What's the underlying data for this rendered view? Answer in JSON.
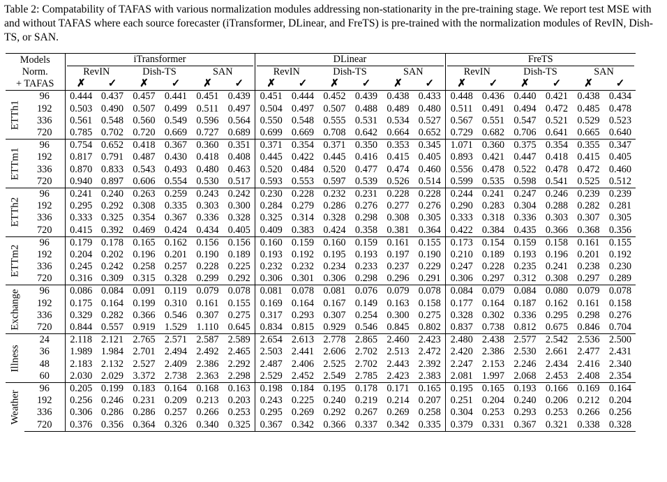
{
  "caption": "Table 2: Compatability of TAFAS with various normalization modules addressing non-stationarity in the pre-training stage. We report test MSE with and without TAFAS where each source forecaster (iTransformer, DLinear, and FreTS) is pre-trained with the normalization modules of RevIN, Dish-TS, or SAN.",
  "header": {
    "models_label": "Models",
    "norm_label": "Norm.",
    "tafas_label": "+ TAFAS",
    "models": [
      "iTransformer",
      "DLinear",
      "FreTS"
    ],
    "norms": [
      "RevIN",
      "Dish-TS",
      "SAN"
    ],
    "without_mark": "✗",
    "with_mark": "✓"
  },
  "groups": [
    {
      "dataset": "ETTh1",
      "rows": [
        {
          "h": "96",
          "v": [
            "0.444",
            "0.437",
            "0.457",
            "0.441",
            "0.451",
            "0.439",
            "0.451",
            "0.444",
            "0.452",
            "0.439",
            "0.438",
            "0.433",
            "0.448",
            "0.436",
            "0.440",
            "0.421",
            "0.438",
            "0.434"
          ],
          "bold": [
            1,
            3,
            5,
            7,
            9,
            11,
            13,
            15,
            17
          ]
        },
        {
          "h": "192",
          "v": [
            "0.503",
            "0.490",
            "0.507",
            "0.499",
            "0.511",
            "0.497",
            "0.504",
            "0.497",
            "0.507",
            "0.488",
            "0.489",
            "0.480",
            "0.511",
            "0.491",
            "0.494",
            "0.472",
            "0.485",
            "0.478"
          ],
          "bold": [
            1,
            3,
            5,
            7,
            9,
            11,
            13,
            15,
            17
          ]
        },
        {
          "h": "336",
          "v": [
            "0.561",
            "0.548",
            "0.560",
            "0.549",
            "0.596",
            "0.564",
            "0.550",
            "0.548",
            "0.555",
            "0.531",
            "0.534",
            "0.527",
            "0.567",
            "0.551",
            "0.547",
            "0.521",
            "0.529",
            "0.523"
          ],
          "bold": [
            1,
            3,
            5,
            7,
            9,
            11,
            13,
            15,
            17
          ]
        },
        {
          "h": "720",
          "v": [
            "0.785",
            "0.702",
            "0.720",
            "0.669",
            "0.727",
            "0.689",
            "0.699",
            "0.669",
            "0.708",
            "0.642",
            "0.664",
            "0.652",
            "0.729",
            "0.682",
            "0.706",
            "0.641",
            "0.665",
            "0.640"
          ],
          "bold": [
            1,
            3,
            5,
            7,
            9,
            11,
            13,
            15,
            17
          ]
        }
      ]
    },
    {
      "dataset": "ETTm1",
      "rows": [
        {
          "h": "96",
          "v": [
            "0.754",
            "0.652",
            "0.418",
            "0.367",
            "0.360",
            "0.351",
            "0.371",
            "0.354",
            "0.371",
            "0.350",
            "0.353",
            "0.345",
            "1.071",
            "0.360",
            "0.375",
            "0.354",
            "0.355",
            "0.347"
          ],
          "bold": [
            1,
            3,
            5,
            7,
            9,
            11,
            13,
            15,
            17
          ]
        },
        {
          "h": "192",
          "v": [
            "0.817",
            "0.791",
            "0.487",
            "0.430",
            "0.418",
            "0.408",
            "0.445",
            "0.422",
            "0.445",
            "0.416",
            "0.415",
            "0.405",
            "0.893",
            "0.421",
            "0.447",
            "0.418",
            "0.415",
            "0.405"
          ],
          "bold": [
            1,
            3,
            5,
            7,
            9,
            11,
            13,
            15,
            17
          ]
        },
        {
          "h": "336",
          "v": [
            "0.870",
            "0.833",
            "0.543",
            "0.493",
            "0.480",
            "0.463",
            "0.520",
            "0.484",
            "0.520",
            "0.477",
            "0.474",
            "0.460",
            "0.556",
            "0.478",
            "0.522",
            "0.478",
            "0.472",
            "0.460"
          ],
          "bold": [
            1,
            3,
            5,
            7,
            9,
            11,
            13,
            15,
            17
          ]
        },
        {
          "h": "720",
          "v": [
            "0.940",
            "0.897",
            "0.606",
            "0.554",
            "0.530",
            "0.517",
            "0.593",
            "0.553",
            "0.597",
            "0.539",
            "0.526",
            "0.514",
            "0.599",
            "0.535",
            "0.598",
            "0.541",
            "0.525",
            "0.512"
          ],
          "bold": [
            1,
            3,
            5,
            7,
            9,
            11,
            13,
            15,
            17
          ]
        }
      ]
    },
    {
      "dataset": "ETTh2",
      "rows": [
        {
          "h": "96",
          "v": [
            "0.241",
            "0.240",
            "0.263",
            "0.259",
            "0.243",
            "0.242",
            "0.230",
            "0.228",
            "0.232",
            "0.231",
            "0.228",
            "0.228",
            "0.244",
            "0.241",
            "0.247",
            "0.246",
            "0.239",
            "0.239"
          ],
          "bold": [
            1,
            3,
            5,
            7,
            9,
            10,
            11,
            13,
            15,
            16,
            17
          ]
        },
        {
          "h": "192",
          "v": [
            "0.295",
            "0.292",
            "0.308",
            "0.335",
            "0.303",
            "0.300",
            "0.284",
            "0.279",
            "0.286",
            "0.276",
            "0.277",
            "0.276",
            "0.290",
            "0.283",
            "0.304",
            "0.288",
            "0.282",
            "0.281"
          ],
          "bold": [
            1,
            2,
            5,
            7,
            9,
            11,
            13,
            15,
            17
          ]
        },
        {
          "h": "336",
          "v": [
            "0.333",
            "0.325",
            "0.354",
            "0.367",
            "0.336",
            "0.328",
            "0.325",
            "0.314",
            "0.328",
            "0.298",
            "0.308",
            "0.305",
            "0.333",
            "0.318",
            "0.336",
            "0.303",
            "0.307",
            "0.305"
          ],
          "bold": [
            1,
            2,
            5,
            7,
            9,
            11,
            13,
            15,
            17
          ]
        },
        {
          "h": "720",
          "v": [
            "0.415",
            "0.392",
            "0.469",
            "0.424",
            "0.434",
            "0.405",
            "0.409",
            "0.383",
            "0.424",
            "0.358",
            "0.381",
            "0.364",
            "0.422",
            "0.384",
            "0.435",
            "0.366",
            "0.368",
            "0.356"
          ],
          "bold": [
            1,
            3,
            5,
            7,
            9,
            11,
            13,
            15,
            17
          ]
        }
      ]
    },
    {
      "dataset": "ETTm2",
      "rows": [
        {
          "h": "96",
          "v": [
            "0.179",
            "0.178",
            "0.165",
            "0.162",
            "0.156",
            "0.156",
            "0.160",
            "0.159",
            "0.160",
            "0.159",
            "0.161",
            "0.155",
            "0.173",
            "0.154",
            "0.159",
            "0.158",
            "0.161",
            "0.155"
          ],
          "bold": [
            1,
            3,
            4,
            5,
            7,
            9,
            11,
            13,
            15,
            17
          ]
        },
        {
          "h": "192",
          "v": [
            "0.204",
            "0.202",
            "0.196",
            "0.201",
            "0.190",
            "0.189",
            "0.193",
            "0.192",
            "0.195",
            "0.193",
            "0.197",
            "0.190",
            "0.210",
            "0.189",
            "0.193",
            "0.196",
            "0.201",
            "0.192"
          ],
          "bold": [
            1,
            2,
            5,
            7,
            9,
            11,
            13,
            14,
            17
          ]
        },
        {
          "h": "336",
          "v": [
            "0.245",
            "0.242",
            "0.258",
            "0.257",
            "0.228",
            "0.225",
            "0.232",
            "0.232",
            "0.234",
            "0.233",
            "0.237",
            "0.229",
            "0.247",
            "0.228",
            "0.235",
            "0.241",
            "0.238",
            "0.230"
          ],
          "bold": [
            1,
            3,
            5,
            6,
            7,
            9,
            11,
            13,
            14,
            17
          ]
        },
        {
          "h": "720",
          "v": [
            "0.316",
            "0.309",
            "0.315",
            "0.328",
            "0.299",
            "0.292",
            "0.306",
            "0.301",
            "0.306",
            "0.298",
            "0.296",
            "0.291",
            "0.306",
            "0.297",
            "0.312",
            "0.308",
            "0.297",
            "0.289"
          ],
          "bold": [
            1,
            2,
            5,
            7,
            9,
            11,
            13,
            15,
            17
          ]
        }
      ]
    },
    {
      "dataset": "Exchange",
      "rows": [
        {
          "h": "96",
          "v": [
            "0.086",
            "0.084",
            "0.091",
            "0.119",
            "0.079",
            "0.078",
            "0.081",
            "0.078",
            "0.081",
            "0.076",
            "0.079",
            "0.078",
            "0.084",
            "0.079",
            "0.084",
            "0.080",
            "0.079",
            "0.078"
          ],
          "bold": [
            1,
            2,
            5,
            7,
            9,
            11,
            13,
            15,
            17
          ]
        },
        {
          "h": "192",
          "v": [
            "0.175",
            "0.164",
            "0.199",
            "0.310",
            "0.161",
            "0.155",
            "0.169",
            "0.164",
            "0.167",
            "0.149",
            "0.163",
            "0.158",
            "0.177",
            "0.164",
            "0.187",
            "0.162",
            "0.161",
            "0.158"
          ],
          "bold": [
            1,
            2,
            5,
            7,
            9,
            11,
            13,
            15,
            17
          ]
        },
        {
          "h": "336",
          "v": [
            "0.329",
            "0.282",
            "0.366",
            "0.546",
            "0.307",
            "0.275",
            "0.317",
            "0.293",
            "0.307",
            "0.254",
            "0.300",
            "0.275",
            "0.328",
            "0.302",
            "0.336",
            "0.295",
            "0.298",
            "0.276"
          ],
          "bold": [
            1,
            2,
            5,
            7,
            9,
            11,
            13,
            15,
            17
          ]
        },
        {
          "h": "720",
          "v": [
            "0.844",
            "0.557",
            "0.919",
            "1.529",
            "1.110",
            "0.645",
            "0.834",
            "0.815",
            "0.929",
            "0.546",
            "0.845",
            "0.802",
            "0.837",
            "0.738",
            "0.812",
            "0.675",
            "0.846",
            "0.704"
          ],
          "bold": [
            1,
            2,
            5,
            7,
            9,
            11,
            13,
            15,
            17
          ]
        }
      ]
    },
    {
      "dataset": "Illness",
      "rows": [
        {
          "h": "24",
          "v": [
            "2.118",
            "2.121",
            "2.765",
            "2.571",
            "2.587",
            "2.589",
            "2.654",
            "2.613",
            "2.778",
            "2.865",
            "2.460",
            "2.423",
            "2.480",
            "2.438",
            "2.577",
            "2.542",
            "2.536",
            "2.500"
          ],
          "bold": [
            0,
            3,
            4,
            7,
            8,
            11,
            13,
            15,
            17
          ]
        },
        {
          "h": "36",
          "v": [
            "1.989",
            "1.984",
            "2.701",
            "2.494",
            "2.492",
            "2.465",
            "2.503",
            "2.441",
            "2.606",
            "2.702",
            "2.513",
            "2.472",
            "2.420",
            "2.386",
            "2.530",
            "2.661",
            "2.477",
            "2.431"
          ],
          "bold": [
            1,
            3,
            5,
            7,
            8,
            11,
            13,
            14,
            17
          ]
        },
        {
          "h": "48",
          "v": [
            "2.183",
            "2.132",
            "2.527",
            "2.409",
            "2.386",
            "2.292",
            "2.487",
            "2.406",
            "2.525",
            "2.702",
            "2.443",
            "2.392",
            "2.247",
            "2.153",
            "2.246",
            "2.434",
            "2.416",
            "2.340"
          ],
          "bold": [
            1,
            3,
            5,
            7,
            8,
            11,
            13,
            14,
            17
          ]
        },
        {
          "h": "60",
          "v": [
            "2.030",
            "2.029",
            "3.372",
            "2.738",
            "2.363",
            "2.298",
            "2.529",
            "2.452",
            "2.549",
            "2.785",
            "2.423",
            "2.383",
            "2.081",
            "1.997",
            "2.068",
            "2.453",
            "2.408",
            "2.354"
          ],
          "bold": [
            1,
            3,
            5,
            7,
            8,
            11,
            13,
            14,
            17
          ]
        }
      ]
    },
    {
      "dataset": "Weather",
      "rows": [
        {
          "h": "96",
          "v": [
            "0.205",
            "0.199",
            "0.183",
            "0.164",
            "0.168",
            "0.163",
            "0.198",
            "0.184",
            "0.195",
            "0.178",
            "0.171",
            "0.165",
            "0.195",
            "0.165",
            "0.193",
            "0.166",
            "0.169",
            "0.164"
          ],
          "bold": [
            1,
            3,
            5,
            7,
            9,
            11,
            13,
            15,
            17
          ]
        },
        {
          "h": "192",
          "v": [
            "0.256",
            "0.246",
            "0.231",
            "0.209",
            "0.213",
            "0.203",
            "0.243",
            "0.225",
            "0.240",
            "0.219",
            "0.214",
            "0.207",
            "0.251",
            "0.204",
            "0.240",
            "0.206",
            "0.212",
            "0.204"
          ],
          "bold": [
            1,
            3,
            5,
            7,
            9,
            11,
            13,
            15,
            17
          ]
        },
        {
          "h": "336",
          "v": [
            "0.306",
            "0.286",
            "0.286",
            "0.257",
            "0.266",
            "0.253",
            "0.295",
            "0.269",
            "0.292",
            "0.267",
            "0.269",
            "0.258",
            "0.304",
            "0.253",
            "0.293",
            "0.253",
            "0.266",
            "0.256"
          ],
          "bold": [
            1,
            3,
            5,
            7,
            9,
            11,
            13,
            15,
            17
          ]
        },
        {
          "h": "720",
          "v": [
            "0.376",
            "0.356",
            "0.364",
            "0.326",
            "0.340",
            "0.325",
            "0.367",
            "0.342",
            "0.366",
            "0.337",
            "0.342",
            "0.335",
            "0.379",
            "0.331",
            "0.367",
            "0.321",
            "0.338",
            "0.328"
          ],
          "bold": [
            1,
            3,
            5,
            7,
            9,
            11,
            13,
            15,
            17
          ]
        }
      ]
    }
  ]
}
